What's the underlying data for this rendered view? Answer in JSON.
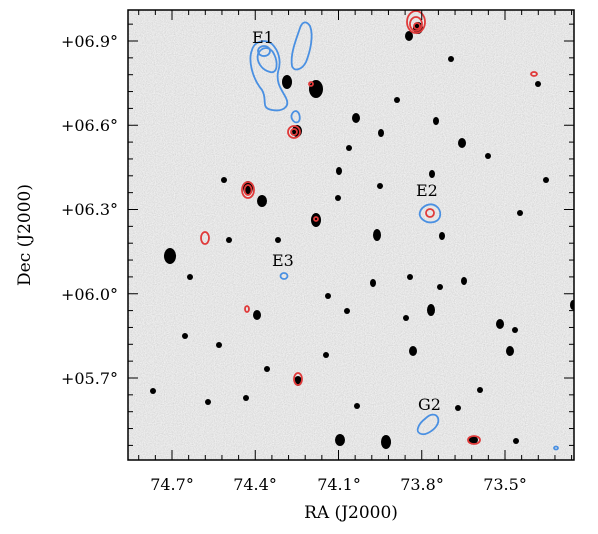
{
  "figure": {
    "xlabel": "RA (J2000)",
    "ylabel": "Dec (J2000)",
    "x_ticks": [
      "74.7°",
      "74.4°",
      "74.1°",
      "73.8°",
      "73.5°"
    ],
    "y_ticks": [
      "+06.9°",
      "+06.6°",
      "+06.3°",
      "+06.0°",
      "+05.7°"
    ],
    "sources": [
      "E1",
      "E2",
      "E3",
      "G2"
    ],
    "colors": {
      "blue_contours": "#4a90e2",
      "red_contours": "#e03a3a",
      "background": "#e4e4e4",
      "point_sources": "#000000"
    }
  }
}
